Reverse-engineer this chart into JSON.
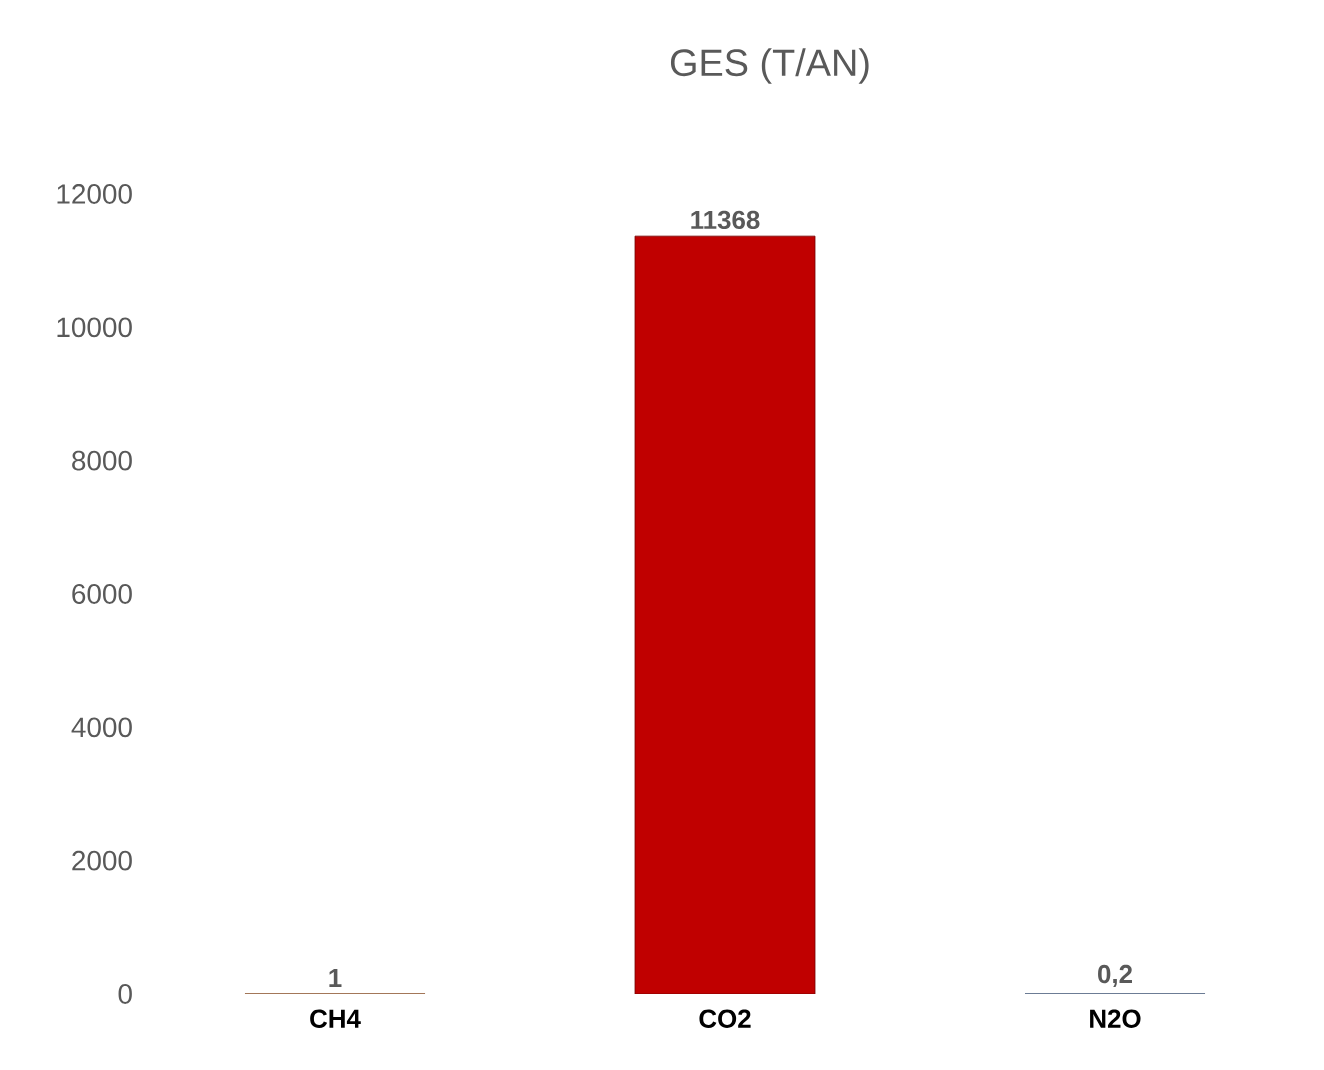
{
  "chart_data": {
    "type": "bar",
    "title": "GES (T/AN)",
    "categories": [
      "CH4",
      "CO2",
      "N2O"
    ],
    "values": [
      1,
      11368,
      0.2
    ],
    "value_labels": [
      "1",
      "11368",
      "0,2"
    ],
    "colors": [
      "#c55a11",
      "#c00000",
      "#2f5597"
    ],
    "ylim": [
      0,
      12000
    ],
    "yticks": [
      0,
      2000,
      4000,
      6000,
      8000,
      10000,
      12000
    ],
    "grid": false
  }
}
